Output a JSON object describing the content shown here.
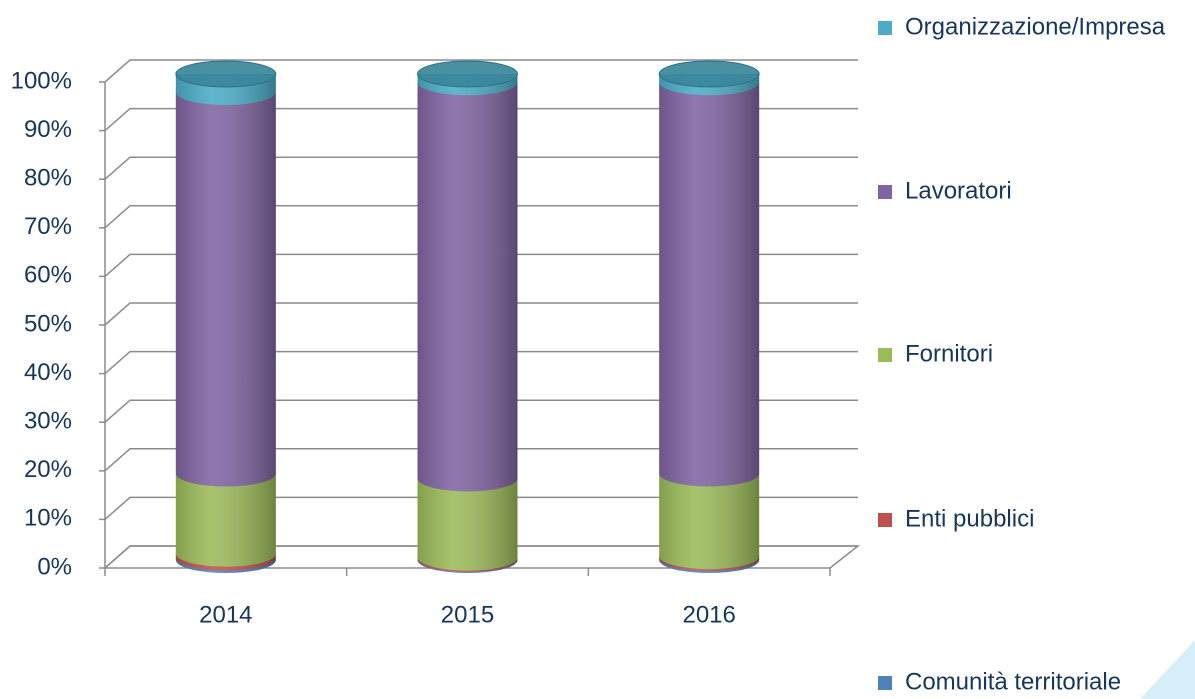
{
  "chart_data": {
    "type": "bar",
    "stacked": true,
    "categories": [
      "2014",
      "2015",
      "2016"
    ],
    "series": [
      {
        "name": "Comunità territoriale",
        "color": "#4f81bd",
        "values": [
          0.5,
          0.2,
          0.4
        ]
      },
      {
        "name": "Enti pubblici",
        "color": "#c0504d",
        "values": [
          0.8,
          0.3,
          0.4
        ]
      },
      {
        "name": "Fornitori",
        "color": "#9bbb59",
        "values": [
          16.5,
          16.3,
          17
        ]
      },
      {
        "name": "Lavoratori",
        "color": "#8064a2",
        "values": [
          78.5,
          81.5,
          80.5
        ]
      },
      {
        "name": "Organizzazione/Impresa",
        "color": "#4bacc6",
        "values": [
          3.7,
          1.7,
          1.7
        ]
      }
    ],
    "ylim": [
      0,
      100
    ],
    "yticks": [
      {
        "value": 0,
        "label": "0%"
      },
      {
        "value": 10,
        "label": "10%"
      },
      {
        "value": 20,
        "label": "20%"
      },
      {
        "value": 30,
        "label": "30%"
      },
      {
        "value": 40,
        "label": "40%"
      },
      {
        "value": 50,
        "label": "50%"
      },
      {
        "value": 60,
        "label": "60%"
      },
      {
        "value": 70,
        "label": "70%"
      },
      {
        "value": 80,
        "label": "80%"
      },
      {
        "value": 90,
        "label": "90%"
      },
      {
        "value": 100,
        "label": "100%"
      }
    ],
    "grid": true,
    "legend": "right"
  }
}
